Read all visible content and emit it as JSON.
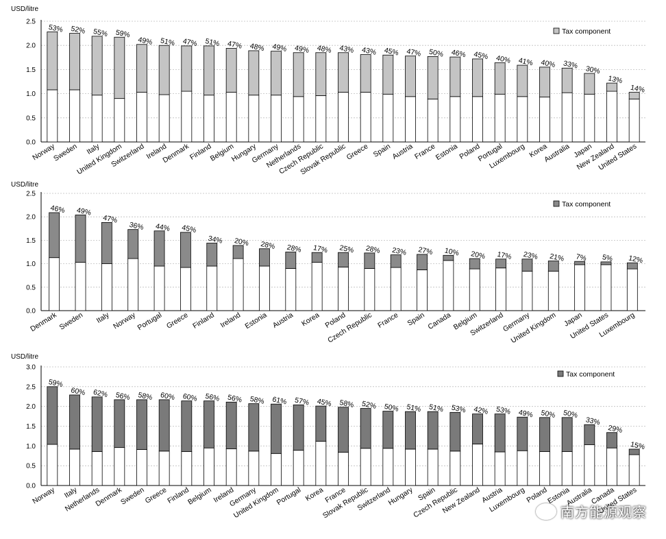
{
  "legend_label": "Tax component",
  "watermark_text": "南方能源观察",
  "chart_data": [
    {
      "type": "bar",
      "stacked": true,
      "ylabel": "USD/litre",
      "ylim": [
        0,
        2.5
      ],
      "yticks": [
        "0.0",
        "0.5",
        "1.0",
        "1.5",
        "2.0",
        "2.5"
      ],
      "legend_position": "top-right",
      "tax_color": "#c4c4c4",
      "categories": [
        "Norway",
        "Sweden",
        "Italy",
        "United Kingdom",
        "Switzerland",
        "Ireland",
        "Denmark",
        "Finland",
        "Belgium",
        "Hungary",
        "Germany",
        "Netherlands",
        "Czech Republic",
        "Slovak Republic",
        "Greece",
        "Spain",
        "Austria",
        "France",
        "Estonia",
        "Poland",
        "Portugal",
        "Luxembourg",
        "Korea",
        "Australia",
        "Japan",
        "New Zealand",
        "United States"
      ],
      "series": [
        {
          "name": "",
          "values": [
            1.08,
            1.08,
            0.97,
            0.9,
            1.03,
            0.98,
            1.05,
            0.97,
            1.03,
            0.97,
            0.97,
            0.94,
            0.96,
            1.03,
            1.03,
            0.99,
            0.94,
            0.89,
            0.94,
            0.94,
            0.99,
            0.94,
            0.93,
            1.02,
            0.99,
            1.05,
            0.89
          ]
        },
        {
          "name": "Tax component",
          "values": [
            1.2,
            1.17,
            1.22,
            1.27,
            0.99,
            1.02,
            0.94,
            1.02,
            0.91,
            0.92,
            0.91,
            0.91,
            0.89,
            0.82,
            0.78,
            0.81,
            0.84,
            0.88,
            0.82,
            0.78,
            0.65,
            0.65,
            0.62,
            0.51,
            0.43,
            0.17,
            0.14
          ]
        }
      ],
      "tax_share_labels": [
        "53%",
        "52%",
        "55%",
        "59%",
        "49%",
        "51%",
        "47%",
        "51%",
        "47%",
        "48%",
        "49%",
        "49%",
        "48%",
        "43%",
        "43%",
        "45%",
        "47%",
        "50%",
        "46%",
        "45%",
        "40%",
        "41%",
        "40%",
        "33%",
        "30%",
        "13%",
        "14%"
      ]
    },
    {
      "type": "bar",
      "stacked": true,
      "ylabel": "USD/litre",
      "ylim": [
        0,
        2.5
      ],
      "yticks": [
        "0.0",
        "0.5",
        "1.0",
        "1.5",
        "2.0",
        "2.5"
      ],
      "legend_position": "top-right",
      "tax_color": "#8a8a8a",
      "categories": [
        "Denmark",
        "Sweden",
        "Italy",
        "Norway",
        "Portugal",
        "Greece",
        "Finland",
        "Ireland",
        "Estonia",
        "Austria",
        "Korea",
        "Poland",
        "Czech Republic",
        "France",
        "Spain",
        "Canada",
        "Belgium",
        "Switzerland",
        "Germany",
        "United Kingdom",
        "Japan",
        "United States",
        "Luxembourg"
      ],
      "series": [
        {
          "name": "",
          "values": [
            1.13,
            1.03,
            1.0,
            1.11,
            0.95,
            0.92,
            0.95,
            1.11,
            0.95,
            0.9,
            1.03,
            0.93,
            0.9,
            0.92,
            0.87,
            1.07,
            0.89,
            0.91,
            0.84,
            0.84,
            0.98,
            0.98,
            0.89
          ]
        },
        {
          "name": "Tax component",
          "values": [
            0.96,
            1.01,
            0.88,
            0.62,
            0.75,
            0.75,
            0.49,
            0.28,
            0.37,
            0.35,
            0.21,
            0.31,
            0.33,
            0.27,
            0.33,
            0.11,
            0.22,
            0.19,
            0.26,
            0.22,
            0.07,
            0.06,
            0.13
          ]
        }
      ],
      "tax_share_labels": [
        "46%",
        "49%",
        "47%",
        "36%",
        "44%",
        "45%",
        "34%",
        "20%",
        "28%",
        "28%",
        "17%",
        "25%",
        "28%",
        "23%",
        "27%",
        "10%",
        "20%",
        "17%",
        "23%",
        "21%",
        "7%",
        "5%",
        "12%"
      ]
    },
    {
      "type": "bar",
      "stacked": true,
      "ylabel": "USD/litre",
      "ylim": [
        0,
        3.0
      ],
      "yticks": [
        "0.0",
        "0.5",
        "1.0",
        "1.5",
        "2.0",
        "2.5",
        "3.0"
      ],
      "legend_position": "top-right",
      "tax_color": "#7a7a7a",
      "categories": [
        "Norway",
        "Italy",
        "Netherlands",
        "Denmark",
        "Sweden",
        "Greece",
        "Finland",
        "Belgium",
        "Ireland",
        "Germany",
        "United Kingdom",
        "Portugal",
        "Korea",
        "France",
        "Slovak Republic",
        "Switzerland",
        "Hungary",
        "Spain",
        "Czech Republic",
        "New Zealand",
        "Austria",
        "Luxembourg",
        "Poland",
        "Estonia",
        "Australia",
        "Canada",
        "United States"
      ],
      "series": [
        {
          "name": "",
          "values": [
            1.04,
            0.92,
            0.86,
            0.96,
            0.91,
            0.87,
            0.86,
            0.95,
            0.93,
            0.87,
            0.81,
            0.89,
            1.12,
            0.84,
            0.94,
            0.94,
            0.92,
            0.92,
            0.87,
            1.05,
            0.85,
            0.88,
            0.86,
            0.86,
            1.03,
            0.95,
            0.78
          ]
        },
        {
          "name": "Tax component",
          "values": [
            1.46,
            1.37,
            1.38,
            1.21,
            1.26,
            1.3,
            1.28,
            1.19,
            1.18,
            1.2,
            1.25,
            1.15,
            0.89,
            1.14,
            1.01,
            0.94,
            0.95,
            0.95,
            0.98,
            0.76,
            0.96,
            0.85,
            0.86,
            0.86,
            0.51,
            0.39,
            0.14
          ]
        }
      ],
      "tax_share_labels": [
        "59%",
        "60%",
        "62%",
        "56%",
        "58%",
        "60%",
        "60%",
        "56%",
        "56%",
        "58%",
        "61%",
        "57%",
        "45%",
        "58%",
        "52%",
        "50%",
        "51%",
        "51%",
        "53%",
        "42%",
        "53%",
        "49%",
        "50%",
        "50%",
        "33%",
        "29%",
        "15%"
      ]
    }
  ]
}
